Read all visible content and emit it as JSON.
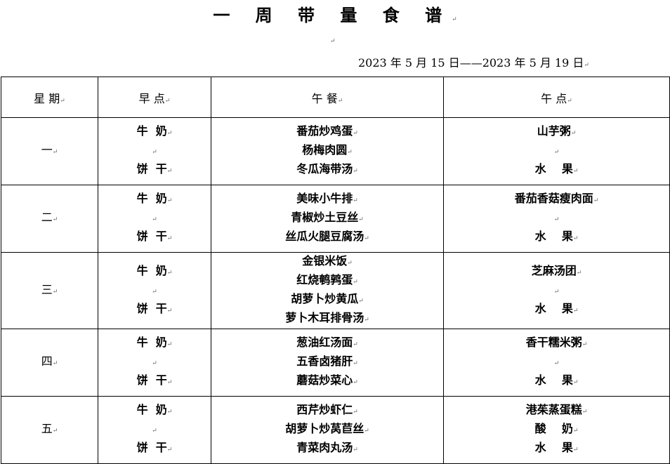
{
  "title": "一 周 带 量 食 谱",
  "date_range": "2023 年 5 月 15 日——2023 年 5 月 19 日",
  "headers": [
    "星  期",
    "早  点",
    "午  餐",
    "午  点"
  ],
  "rows": [
    {
      "day": "一",
      "breakfast": [
        "牛  奶",
        "",
        "饼  干"
      ],
      "lunch": [
        "番茄炒鸡蛋",
        "杨梅肉圆",
        "冬瓜海带汤"
      ],
      "snack": [
        "山芋粥",
        "",
        "水    果"
      ]
    },
    {
      "day": "二",
      "breakfast": [
        "牛  奶",
        "",
        "饼  干"
      ],
      "lunch": [
        "美味小牛排",
        "青椒炒土豆丝",
        "丝瓜火腿豆腐汤"
      ],
      "snack": [
        "番茄香菇瘦肉面",
        "",
        "水    果"
      ]
    },
    {
      "day": "三",
      "breakfast": [
        "牛  奶",
        "",
        "饼  干"
      ],
      "lunch": [
        "金银米饭",
        "红烧鹌鹑蛋",
        "胡萝卜炒黄瓜",
        "萝卜木耳排骨汤"
      ],
      "snack": [
        "芝麻汤团",
        "",
        "水    果"
      ]
    },
    {
      "day": "四",
      "breakfast": [
        "牛  奶",
        "",
        "饼  干"
      ],
      "lunch": [
        "葱油红汤面",
        "五香卤猪肝",
        "蘑菇炒菜心"
      ],
      "snack": [
        "香干糯米粥",
        "",
        "水    果"
      ]
    },
    {
      "day": "五",
      "breakfast": [
        "牛  奶",
        "",
        "饼  干"
      ],
      "lunch": [
        "西芹炒虾仁",
        "胡萝卜炒莴苣丝",
        "青菜肉丸汤"
      ],
      "snack": [
        "港茱蒸蛋糕",
        "酸    奶",
        "水    果"
      ]
    }
  ]
}
